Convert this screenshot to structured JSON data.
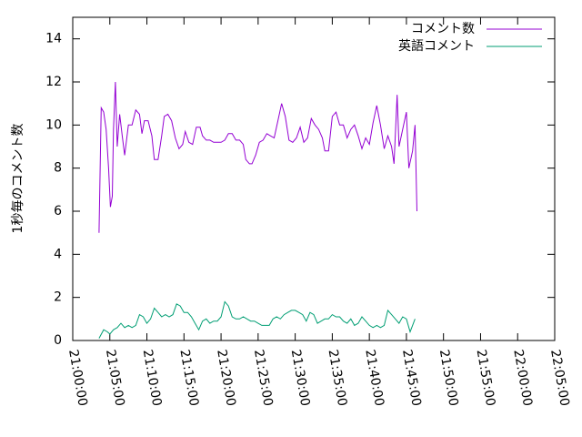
{
  "chart_data": {
    "type": "line",
    "title": "",
    "xlabel": "",
    "ylabel": "1秒毎のコメント数",
    "xlim": [
      "21:00:00",
      "22:05:00"
    ],
    "ylim": [
      0,
      15
    ],
    "yticks": [
      0,
      2,
      4,
      6,
      8,
      10,
      12,
      14
    ],
    "xticks": [
      "21:00:00",
      "21:05:00",
      "21:10:00",
      "21:15:00",
      "21:20:00",
      "21:25:00",
      "21:30:00",
      "21:35:00",
      "21:40:00",
      "21:45:00",
      "21:50:00",
      "21:55:00",
      "22:00:00",
      "22:05:00"
    ],
    "grid": false,
    "legend": "top-right",
    "series": [
      {
        "name": "コメント数",
        "color": "#9400d3",
        "points": [
          [
            "21:03:33",
            5.0
          ],
          [
            "21:03:50",
            10.8
          ],
          [
            "21:04:10",
            10.6
          ],
          [
            "21:04:30",
            9.8
          ],
          [
            "21:04:50",
            8.0
          ],
          [
            "21:05:05",
            6.2
          ],
          [
            "21:05:20",
            6.7
          ],
          [
            "21:05:30",
            9.8
          ],
          [
            "21:05:45",
            12.0
          ],
          [
            "21:06:00",
            9.0
          ],
          [
            "21:06:20",
            10.5
          ],
          [
            "21:06:40",
            9.5
          ],
          [
            "21:07:00",
            8.6
          ],
          [
            "21:07:30",
            10.0
          ],
          [
            "21:08:00",
            10.0
          ],
          [
            "21:08:30",
            10.7
          ],
          [
            "21:09:00",
            10.5
          ],
          [
            "21:09:20",
            9.6
          ],
          [
            "21:09:40",
            10.2
          ],
          [
            "21:10:10",
            10.2
          ],
          [
            "21:10:40",
            9.5
          ],
          [
            "21:11:00",
            8.4
          ],
          [
            "21:11:30",
            8.4
          ],
          [
            "21:12:00",
            9.5
          ],
          [
            "21:12:20",
            10.4
          ],
          [
            "21:12:50",
            10.5
          ],
          [
            "21:13:20",
            10.2
          ],
          [
            "21:13:50",
            9.4
          ],
          [
            "21:14:20",
            8.9
          ],
          [
            "21:14:50",
            9.1
          ],
          [
            "21:15:10",
            9.7
          ],
          [
            "21:15:40",
            9.2
          ],
          [
            "21:16:10",
            9.1
          ],
          [
            "21:16:40",
            9.9
          ],
          [
            "21:17:10",
            9.9
          ],
          [
            "21:17:30",
            9.5
          ],
          [
            "21:18:00",
            9.3
          ],
          [
            "21:18:30",
            9.3
          ],
          [
            "21:19:00",
            9.2
          ],
          [
            "21:19:30",
            9.2
          ],
          [
            "21:20:00",
            9.2
          ],
          [
            "21:20:30",
            9.3
          ],
          [
            "21:21:00",
            9.6
          ],
          [
            "21:21:30",
            9.6
          ],
          [
            "21:22:00",
            9.3
          ],
          [
            "21:22:30",
            9.3
          ],
          [
            "21:23:00",
            9.1
          ],
          [
            "21:23:20",
            8.4
          ],
          [
            "21:23:50",
            8.2
          ],
          [
            "21:24:10",
            8.2
          ],
          [
            "21:24:40",
            8.6
          ],
          [
            "21:25:10",
            9.2
          ],
          [
            "21:25:40",
            9.3
          ],
          [
            "21:26:10",
            9.6
          ],
          [
            "21:26:40",
            9.5
          ],
          [
            "21:27:10",
            9.4
          ],
          [
            "21:27:40",
            10.2
          ],
          [
            "21:28:10",
            11.0
          ],
          [
            "21:28:40",
            10.4
          ],
          [
            "21:29:10",
            9.3
          ],
          [
            "21:29:40",
            9.2
          ],
          [
            "21:30:10",
            9.4
          ],
          [
            "21:30:40",
            9.9
          ],
          [
            "21:31:10",
            9.2
          ],
          [
            "21:31:40",
            9.4
          ],
          [
            "21:32:10",
            10.3
          ],
          [
            "21:32:40",
            10.0
          ],
          [
            "21:33:10",
            9.8
          ],
          [
            "21:33:40",
            9.4
          ],
          [
            "21:34:00",
            8.8
          ],
          [
            "21:34:30",
            8.8
          ],
          [
            "21:35:00",
            10.4
          ],
          [
            "21:35:30",
            10.6
          ],
          [
            "21:36:00",
            10.0
          ],
          [
            "21:36:30",
            10.0
          ],
          [
            "21:37:00",
            9.4
          ],
          [
            "21:37:30",
            9.8
          ],
          [
            "21:38:00",
            10.0
          ],
          [
            "21:38:30",
            9.5
          ],
          [
            "21:39:00",
            8.9
          ],
          [
            "21:39:30",
            9.4
          ],
          [
            "21:40:00",
            9.1
          ],
          [
            "21:40:30",
            10.1
          ],
          [
            "21:41:00",
            10.9
          ],
          [
            "21:41:30",
            10.0
          ],
          [
            "21:42:00",
            8.9
          ],
          [
            "21:42:30",
            9.5
          ],
          [
            "21:43:00",
            9.0
          ],
          [
            "21:43:20",
            8.2
          ],
          [
            "21:43:45",
            11.4
          ],
          [
            "21:44:00",
            9.0
          ],
          [
            "21:44:30",
            9.8
          ],
          [
            "21:45:00",
            10.6
          ],
          [
            "21:45:20",
            8.0
          ],
          [
            "21:45:50",
            8.8
          ],
          [
            "21:46:10",
            10.0
          ],
          [
            "21:46:25",
            6.0
          ]
        ]
      },
      {
        "name": "英語コメント",
        "color": "#009e73",
        "points": [
          [
            "21:03:33",
            0.1
          ],
          [
            "21:04:10",
            0.5
          ],
          [
            "21:04:40",
            0.4
          ],
          [
            "21:05:00",
            0.3
          ],
          [
            "21:05:30",
            0.5
          ],
          [
            "21:06:00",
            0.6
          ],
          [
            "21:06:30",
            0.8
          ],
          [
            "21:07:00",
            0.6
          ],
          [
            "21:07:30",
            0.7
          ],
          [
            "21:08:00",
            0.6
          ],
          [
            "21:08:30",
            0.7
          ],
          [
            "21:09:00",
            1.2
          ],
          [
            "21:09:30",
            1.1
          ],
          [
            "21:10:00",
            0.8
          ],
          [
            "21:10:30",
            1.0
          ],
          [
            "21:11:00",
            1.5
          ],
          [
            "21:11:30",
            1.3
          ],
          [
            "21:12:00",
            1.1
          ],
          [
            "21:12:30",
            1.2
          ],
          [
            "21:13:00",
            1.1
          ],
          [
            "21:13:30",
            1.2
          ],
          [
            "21:14:00",
            1.7
          ],
          [
            "21:14:30",
            1.6
          ],
          [
            "21:15:00",
            1.3
          ],
          [
            "21:15:30",
            1.3
          ],
          [
            "21:16:00",
            1.1
          ],
          [
            "21:16:30",
            0.8
          ],
          [
            "21:17:00",
            0.5
          ],
          [
            "21:17:30",
            0.9
          ],
          [
            "21:18:00",
            1.0
          ],
          [
            "21:18:30",
            0.8
          ],
          [
            "21:19:00",
            0.9
          ],
          [
            "21:19:30",
            0.9
          ],
          [
            "21:20:00",
            1.1
          ],
          [
            "21:20:30",
            1.8
          ],
          [
            "21:21:00",
            1.6
          ],
          [
            "21:21:30",
            1.1
          ],
          [
            "21:22:00",
            1.0
          ],
          [
            "21:22:30",
            1.0
          ],
          [
            "21:23:00",
            1.1
          ],
          [
            "21:23:30",
            1.0
          ],
          [
            "21:24:00",
            0.9
          ],
          [
            "21:24:30",
            0.9
          ],
          [
            "21:25:00",
            0.8
          ],
          [
            "21:25:30",
            0.7
          ],
          [
            "21:26:00",
            0.7
          ],
          [
            "21:26:30",
            0.7
          ],
          [
            "21:27:00",
            1.0
          ],
          [
            "21:27:30",
            1.1
          ],
          [
            "21:28:00",
            1.0
          ],
          [
            "21:28:30",
            1.2
          ],
          [
            "21:29:00",
            1.3
          ],
          [
            "21:29:30",
            1.4
          ],
          [
            "21:30:00",
            1.4
          ],
          [
            "21:30:30",
            1.3
          ],
          [
            "21:31:00",
            1.2
          ],
          [
            "21:31:30",
            0.9
          ],
          [
            "21:32:00",
            1.3
          ],
          [
            "21:32:30",
            1.2
          ],
          [
            "21:33:00",
            0.8
          ],
          [
            "21:33:30",
            0.9
          ],
          [
            "21:34:00",
            1.0
          ],
          [
            "21:34:30",
            1.0
          ],
          [
            "21:35:00",
            1.2
          ],
          [
            "21:35:30",
            1.1
          ],
          [
            "21:36:00",
            1.1
          ],
          [
            "21:36:30",
            0.9
          ],
          [
            "21:37:00",
            0.8
          ],
          [
            "21:37:30",
            1.0
          ],
          [
            "21:38:00",
            0.7
          ],
          [
            "21:38:30",
            0.8
          ],
          [
            "21:39:00",
            1.1
          ],
          [
            "21:39:30",
            0.9
          ],
          [
            "21:40:00",
            0.7
          ],
          [
            "21:40:30",
            0.6
          ],
          [
            "21:41:00",
            0.7
          ],
          [
            "21:41:30",
            0.6
          ],
          [
            "21:42:00",
            0.7
          ],
          [
            "21:42:30",
            1.4
          ],
          [
            "21:43:00",
            1.2
          ],
          [
            "21:43:30",
            1.0
          ],
          [
            "21:44:00",
            0.8
          ],
          [
            "21:44:30",
            1.1
          ],
          [
            "21:45:00",
            1.0
          ],
          [
            "21:45:30",
            0.4
          ],
          [
            "21:46:10",
            1.0
          ]
        ]
      }
    ]
  }
}
